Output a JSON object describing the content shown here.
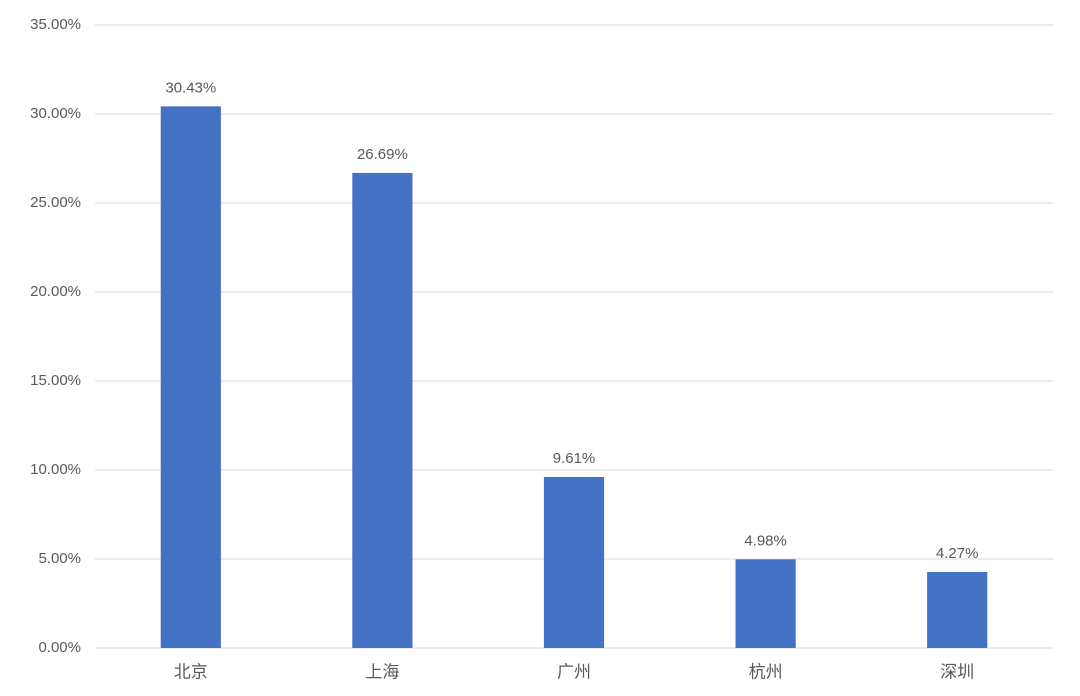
{
  "chart_data": {
    "type": "bar",
    "categories": [
      "北京",
      "上海",
      "广州",
      "杭州",
      "深圳"
    ],
    "values": [
      30.43,
      26.69,
      9.61,
      4.98,
      4.27
    ],
    "value_labels": [
      "30.43%",
      "26.69%",
      "9.61%",
      "4.98%",
      "4.27%"
    ],
    "color": "#4472c4",
    "ylim": [
      0,
      35
    ],
    "yticks": [
      {
        "value": 0,
        "label": "0.00%"
      },
      {
        "value": 5,
        "label": "5.00%"
      },
      {
        "value": 10,
        "label": "10.00%"
      },
      {
        "value": 15,
        "label": "15.00%"
      },
      {
        "value": 20,
        "label": "20.00%"
      },
      {
        "value": 25,
        "label": "25.00%"
      },
      {
        "value": 30,
        "label": "30.00%"
      },
      {
        "value": 35,
        "label": "35.00%"
      }
    ],
    "grid": true
  }
}
